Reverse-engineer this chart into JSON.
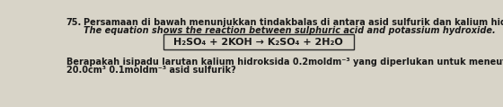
{
  "question_number": "75.",
  "line1_malay": "Persamaan di bawah menunjukkan tindakbalas di antara asid sulfurik dan kalium hidroksida.",
  "line2_english": "The equation shows the reaction between sulphuric acid and potassium hydroxide.",
  "equation": "H₂SO₄ + 2KOH → K₂SO₄ + 2H₂O",
  "line3_text": "Berapakah isipadu larutan kalium hidroksida 0.2moldm⁻³ yang diperlukan untuk meneutralkan",
  "line4_text": "20.0cm³ 0.1moldm⁻³ asid sulfurik?",
  "bg_color": "#d8d4c8",
  "text_color": "#1a1a1a",
  "box_color": "#2a2a2a",
  "box_bg": "#d8d4c8",
  "font_size_main": 7.0,
  "font_size_eq": 8.0
}
